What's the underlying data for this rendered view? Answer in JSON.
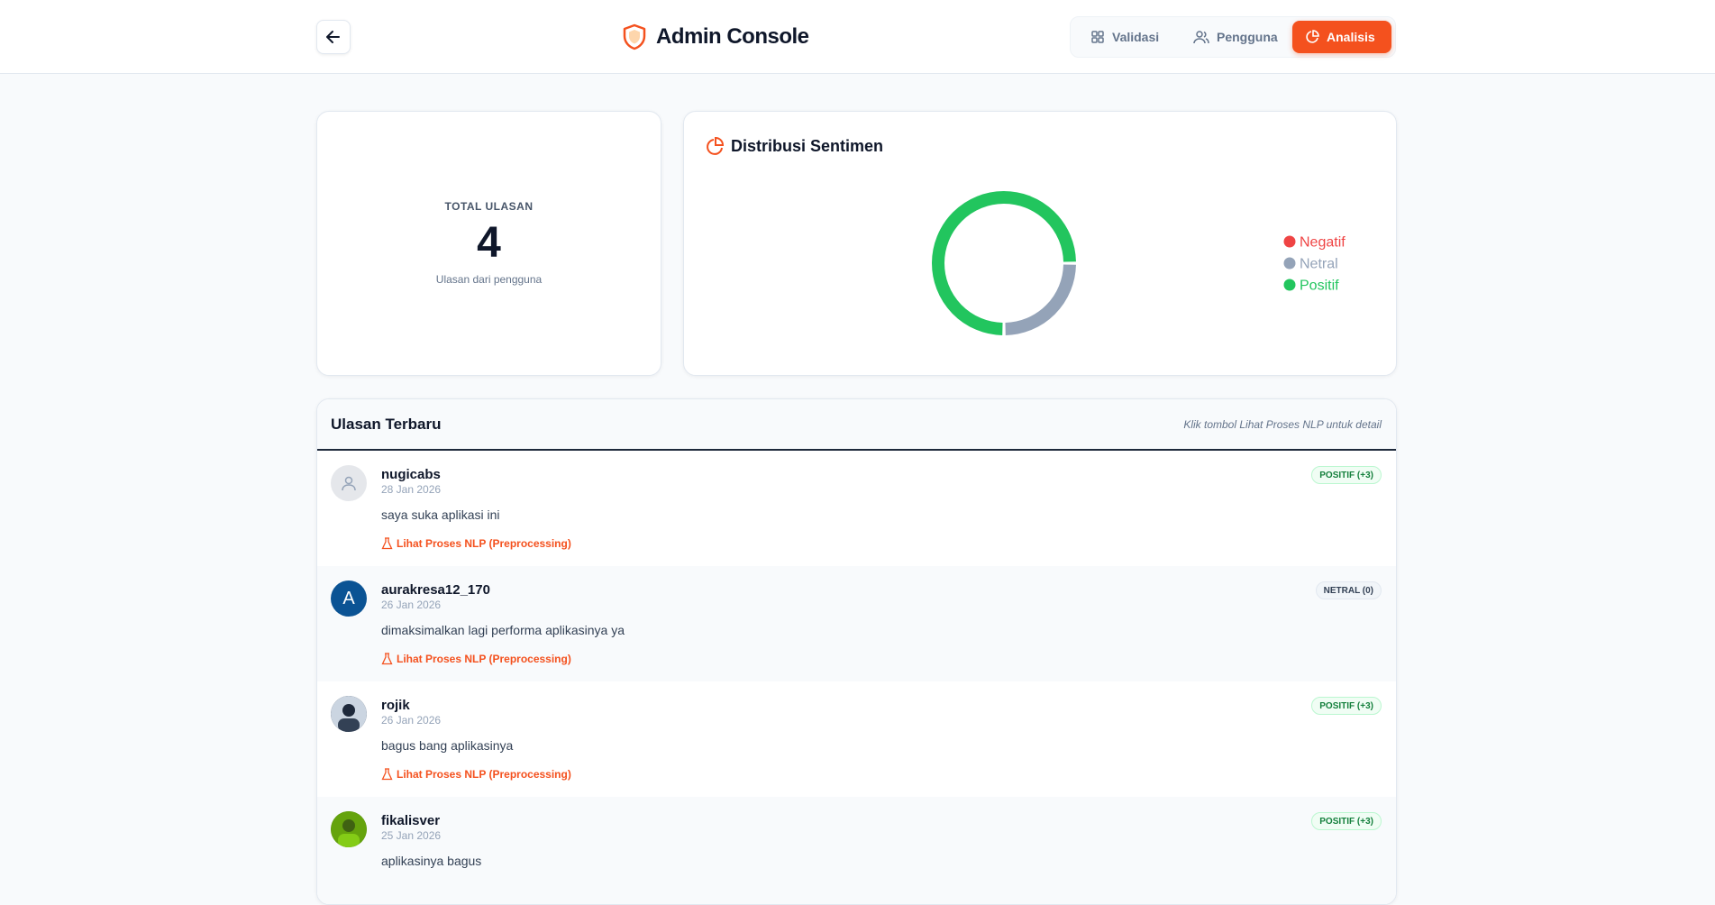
{
  "header": {
    "title": "Admin Console",
    "nav": [
      "Validasi",
      "Pengguna",
      "Analisis"
    ]
  },
  "summary": {
    "label": "TOTAL ULASAN",
    "value": 4,
    "caption": "Ulasan dari pengguna"
  },
  "chart_data": {
    "type": "doughnut",
    "title": "Distribusi Sentimen",
    "categories": [
      "Negatif",
      "Netral",
      "Positif"
    ],
    "values": [
      0,
      1,
      3
    ],
    "colors": [
      "#ef4444",
      "#94a3b8",
      "#22c55e"
    ]
  },
  "reviews": {
    "title": "Ulasan Terbaru",
    "hint": "Klik tombol Lihat Proses NLP untuk detail",
    "items": [
      {
        "user": "nugicabs",
        "date": "28 Jan 2026",
        "text": "saya suka aplikasi ini",
        "badge": "POSITIF (+3)",
        "link": "Lihat Proses NLP (Preprocessing)"
      },
      {
        "user": "aurakresa12_170",
        "avatar": "A",
        "date": "26 Jan 2026",
        "text": "dimaksimalkan lagi performa aplikasinya ya",
        "badge": "NETRAL (0)",
        "link": "Lihat Proses NLP (Preprocessing)"
      },
      {
        "user": "rojik",
        "date": "26 Jan 2026",
        "text": "bagus bang aplikasinya",
        "badge": "POSITIF (+3)",
        "link": "Lihat Proses NLP (Preprocessing)"
      },
      {
        "user": "fikalisver",
        "date": "25 Jan 2026",
        "text": "aplikasinya bagus",
        "badge": "POSITIF (+3)"
      }
    ]
  }
}
